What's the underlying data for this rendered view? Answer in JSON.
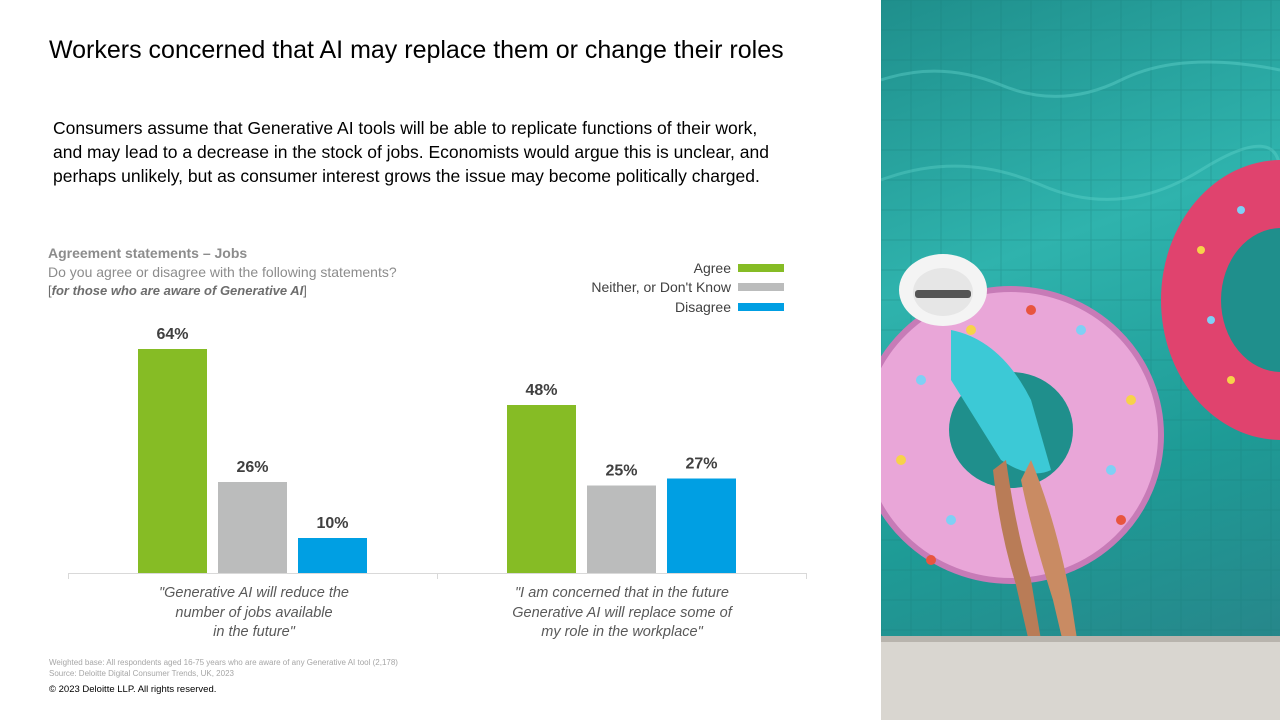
{
  "title": "Workers concerned that AI may replace them or change their roles",
  "intro": "Consumers assume that Generative AI tools will be able to replicate functions of their work, and may lead to a decrease in the stock of jobs. Economists would argue this is unclear, and perhaps unlikely, but as consumer interest grows the issue may become politically charged.",
  "question": {
    "heading": "Agreement statements – Jobs",
    "text": "Do you agree or disagree with the following statements?",
    "note_open": "[",
    "note": "for those who are aware of Generative AI",
    "note_close": "]"
  },
  "footnote": {
    "base": "Weighted base: All respondents aged 16-75 years who are aware of any Generative AI tool (2,178)",
    "source": "Source: Deloitte Digital Consumer Trends, UK, 2023"
  },
  "copyright": "© 2023 Deloitte LLP. All rights reserved.",
  "colors": {
    "agree": "#86bc25",
    "neither": "#bbbcbc",
    "disagree": "#009fe3"
  },
  "chart_data": {
    "type": "bar",
    "categories": [
      "\"Generative AI will reduce the number of jobs available in the future\"",
      "\"I am concerned that in the future Generative AI will replace some of my role in the workplace\""
    ],
    "category_lines": [
      [
        "\"Generative AI will reduce the",
        "number of jobs available",
        "in the future\""
      ],
      [
        "\"I am concerned that in the future",
        "Generative AI will replace some of",
        "my role in the workplace\""
      ]
    ],
    "series": [
      {
        "name": "Agree",
        "values": [
          64,
          48
        ],
        "color": "#86bc25"
      },
      {
        "name": "Neither, or Don't Know",
        "values": [
          26,
          25
        ],
        "color": "#bbbcbc"
      },
      {
        "name": "Disagree",
        "values": [
          10,
          27
        ],
        "color": "#009fe3"
      }
    ],
    "value_suffix": "%",
    "ylim": [
      0,
      70
    ],
    "legend_position": "top-right",
    "grid": false
  }
}
